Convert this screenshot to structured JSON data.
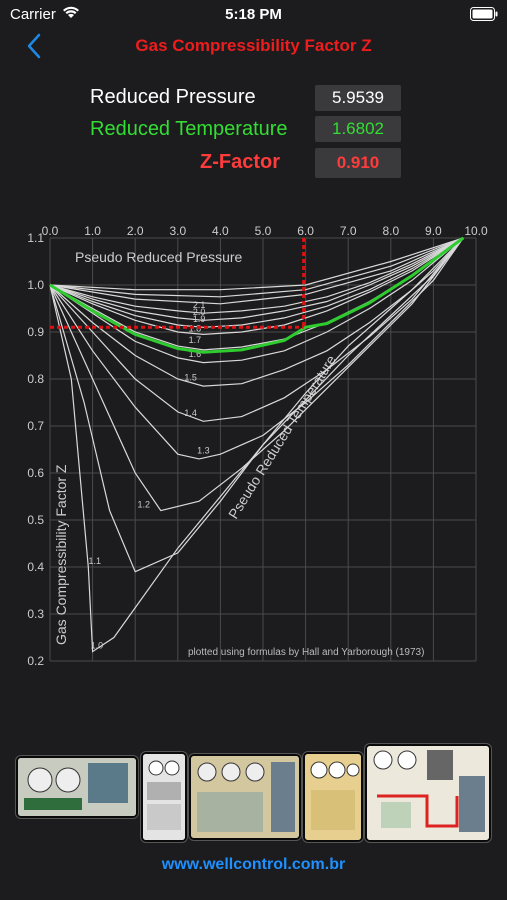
{
  "status": {
    "carrier": "Carrier",
    "time": "5:18 PM"
  },
  "nav": {
    "title": "Gas Compressibility Factor Z"
  },
  "inputs": {
    "pressure_label": "Reduced Pressure",
    "pressure_value": "5.9539",
    "temperature_label": "Reduced Temperature",
    "temperature_value": "1.6802",
    "z_label": "Z-Factor",
    "z_value": "0.910"
  },
  "chart_data": {
    "type": "line",
    "x_ticks": [
      "0.0",
      "1.0",
      "2.0",
      "3.0",
      "4.0",
      "5.0",
      "6.0",
      "7.0",
      "8.0",
      "9.0",
      "10.0"
    ],
    "y_ticks": [
      "1.1",
      "1.0",
      "0.9",
      "0.8",
      "0.7",
      "0.6",
      "0.5",
      "0.4",
      "0.3",
      "0.2"
    ],
    "xlim": [
      0,
      10
    ],
    "ylim": [
      0.2,
      1.1
    ],
    "xlabel": "Pseudo Reduced Pressure",
    "ylabel": "Gas Compressibility Factor Z",
    "diagonal_label": "Pseudo Reduced Temperature",
    "credit": "plotted using formulas by Hall and Yarborough (1973)",
    "grid": true,
    "series": [
      {
        "name": "1.0",
        "x": [
          0,
          0.5,
          0.9,
          1.0,
          1.5,
          3,
          5,
          7,
          9,
          9.7
        ],
        "y": [
          1.0,
          0.8,
          0.4,
          0.22,
          0.25,
          0.44,
          0.66,
          0.85,
          1.02,
          1.1
        ]
      },
      {
        "name": "1.1",
        "x": [
          0,
          0.8,
          1.4,
          2,
          3,
          4,
          5,
          6,
          7,
          8,
          9,
          9.7
        ],
        "y": [
          1.0,
          0.75,
          0.52,
          0.39,
          0.43,
          0.54,
          0.66,
          0.77,
          0.87,
          0.95,
          1.03,
          1.1
        ]
      },
      {
        "name": "1.2",
        "x": [
          0,
          1,
          2,
          2.6,
          3.5,
          4.5,
          5.5,
          6.5,
          7.5,
          8.5,
          9.7
        ],
        "y": [
          1.0,
          0.8,
          0.6,
          0.52,
          0.54,
          0.61,
          0.69,
          0.78,
          0.87,
          0.96,
          1.1
        ]
      },
      {
        "name": "1.3",
        "x": [
          0,
          1,
          2,
          3,
          3.5,
          4,
          5,
          6,
          7,
          8,
          9,
          9.7
        ],
        "y": [
          1.0,
          0.86,
          0.74,
          0.64,
          0.63,
          0.64,
          0.68,
          0.75,
          0.83,
          0.92,
          1.01,
          1.1
        ]
      },
      {
        "name": "1.4",
        "x": [
          0,
          1,
          2,
          3,
          3.6,
          4.5,
          5.5,
          6.5,
          7.5,
          8.5,
          9.7
        ],
        "y": [
          1.0,
          0.9,
          0.8,
          0.73,
          0.71,
          0.72,
          0.76,
          0.82,
          0.89,
          0.97,
          1.1
        ]
      },
      {
        "name": "1.5",
        "x": [
          0,
          1,
          2,
          3,
          3.6,
          4.5,
          5.5,
          6.5,
          7.5,
          8.5,
          9.7
        ],
        "y": [
          1.0,
          0.92,
          0.85,
          0.8,
          0.785,
          0.79,
          0.82,
          0.86,
          0.92,
          0.99,
          1.1
        ]
      },
      {
        "name": "1.6",
        "x": [
          0,
          1,
          2,
          3,
          3.6,
          4.5,
          5.5,
          6.5,
          7.5,
          8.5,
          9.7
        ],
        "y": [
          1.0,
          0.94,
          0.88,
          0.845,
          0.835,
          0.84,
          0.86,
          0.9,
          0.95,
          1.01,
          1.1
        ]
      },
      {
        "name": "1.7",
        "x": [
          0,
          1,
          2,
          3,
          3.6,
          4.5,
          5.5,
          6.5,
          7.5,
          8.5,
          9.7
        ],
        "y": [
          1.0,
          0.95,
          0.9,
          0.87,
          0.862,
          0.868,
          0.885,
          0.92,
          0.965,
          1.02,
          1.1
        ]
      },
      {
        "name": "1.8",
        "x": [
          0,
          1,
          2,
          3,
          3.6,
          4.5,
          5.5,
          6.5,
          7.5,
          8.5,
          9.7
        ],
        "y": [
          1.0,
          0.96,
          0.925,
          0.9,
          0.895,
          0.9,
          0.915,
          0.945,
          0.985,
          1.03,
          1.1
        ]
      },
      {
        "name": "1.9",
        "x": [
          0,
          1,
          2,
          3,
          3.6,
          4.5,
          5.5,
          6.5,
          7.5,
          8.5,
          9.7
        ],
        "y": [
          1.0,
          0.965,
          0.935,
          0.915,
          0.91,
          0.915,
          0.93,
          0.955,
          0.99,
          1.035,
          1.1
        ]
      },
      {
        "name": "2.0",
        "x": [
          0,
          1,
          2,
          3,
          3.6,
          4.5,
          5.5,
          6.5,
          7.5,
          8.5,
          9.7
        ],
        "y": [
          1.0,
          0.97,
          0.945,
          0.93,
          0.925,
          0.93,
          0.945,
          0.965,
          1.0,
          1.04,
          1.1
        ]
      },
      {
        "name": "2.1",
        "x": [
          0,
          1,
          2,
          3,
          3.6,
          4.5,
          5.5,
          6.5,
          7.5,
          8.5,
          9.7
        ],
        "y": [
          1.0,
          0.975,
          0.955,
          0.945,
          0.94,
          0.945,
          0.955,
          0.975,
          1.005,
          1.045,
          1.1
        ]
      },
      {
        "name": "",
        "x": [
          0,
          2,
          4,
          6,
          8,
          9.7
        ],
        "y": [
          1.0,
          0.97,
          0.96,
          0.98,
          1.03,
          1.1
        ]
      },
      {
        "name": "",
        "x": [
          0,
          2,
          4,
          6,
          8,
          9.7
        ],
        "y": [
          1.0,
          0.98,
          0.975,
          0.99,
          1.04,
          1.1
        ]
      },
      {
        "name": "",
        "x": [
          0,
          2,
          4,
          6,
          8,
          9.7
        ],
        "y": [
          1.0,
          0.99,
          0.99,
          1.0,
          1.05,
          1.1
        ]
      }
    ],
    "highlight": {
      "name": "1.6802",
      "color": "#2ecc2e",
      "x": [
        0,
        1,
        2,
        3,
        3.6,
        4.5,
        5.5,
        6,
        6.5,
        7.5,
        8.5,
        9.7
      ],
      "y": [
        1.0,
        0.945,
        0.895,
        0.865,
        0.857,
        0.862,
        0.882,
        0.91,
        0.918,
        0.962,
        1.02,
        1.1
      ]
    },
    "marker": {
      "x": 5.9539,
      "y": 0.91,
      "color": "#dd1111"
    },
    "label_positions": {
      "1.0": [
        1.0,
        0.22
      ],
      "1.1": [
        0.95,
        0.4
      ],
      "1.2": [
        2.1,
        0.52
      ],
      "1.3": [
        3.5,
        0.635
      ],
      "1.4": [
        3.2,
        0.715
      ],
      "1.5": [
        3.2,
        0.79
      ],
      "1.6": [
        3.3,
        0.84
      ],
      "1.7": [
        3.3,
        0.87
      ],
      "1.8": [
        3.3,
        0.895
      ],
      "1.9": [
        3.4,
        0.915
      ],
      "2.0": [
        3.4,
        0.93
      ],
      "2.1": [
        3.4,
        0.945
      ]
    }
  },
  "thumbnails": [
    {
      "name": "thumb-1"
    },
    {
      "name": "thumb-2"
    },
    {
      "name": "thumb-3"
    },
    {
      "name": "thumb-4"
    },
    {
      "name": "thumb-5"
    }
  ],
  "footer": {
    "link": "www.wellcontrol.com.br"
  }
}
